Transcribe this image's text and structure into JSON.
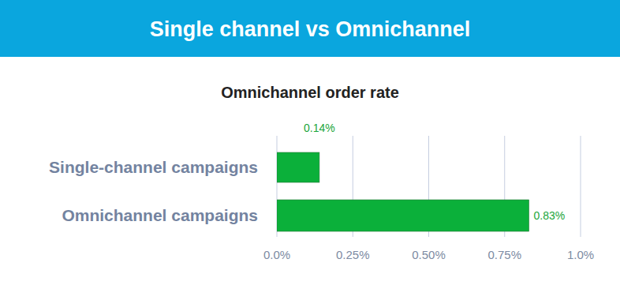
{
  "chart_data": {
    "type": "bar",
    "title": "Single channel vs Omnichannel",
    "subtitle": "Omnichannel order rate",
    "orientation": "horizontal",
    "categories": [
      "Single-channel campaigns",
      "Omnichannel campaigns"
    ],
    "values": [
      0.14,
      0.83
    ],
    "value_labels": [
      "0.14%",
      "0.83%"
    ],
    "color": "#0bb03a",
    "xlim": [
      0,
      1
    ],
    "xticks": [
      {
        "value": 0,
        "label": "0.0%"
      },
      {
        "value": 0.25,
        "label": "0.25%"
      },
      {
        "value": 0.5,
        "label": "0.50%"
      },
      {
        "value": 0.75,
        "label": "0.75%"
      },
      {
        "value": 1,
        "label": "1.0%"
      }
    ],
    "grid": true,
    "data_labels": true
  }
}
